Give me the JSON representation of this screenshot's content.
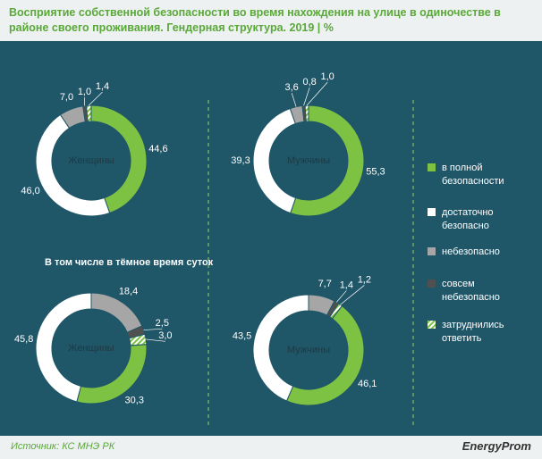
{
  "title": "Восприятие собственной безопасности во время нахождения на улице в одиночестве в районе своего проживания. Гендерная структура. 2019 | %",
  "section_label": "В том числе  в тёмное время суток",
  "source": "Источник: КС МНЭ РК",
  "logo": "EnergyProm",
  "chart_data": [
    {
      "type": "donut",
      "center_label": "Женщины",
      "categories": [
        "в полной безопасности",
        "достаточно безопасно",
        "небезопасно",
        "совсем небезопасно",
        "затруднились ответить"
      ],
      "values": [
        44.6,
        46.0,
        7.0,
        1.0,
        1.4
      ],
      "value_labels": [
        "44,6",
        "46,0",
        "7,0",
        "1,0",
        "1,4"
      ],
      "colors": [
        "#7dc242",
        "#ffffff",
        "#a6a6a6",
        "#505050",
        "#b5dc7e"
      ],
      "hatched": [
        false,
        false,
        false,
        false,
        true
      ]
    },
    {
      "type": "donut",
      "center_label": "Мужчины",
      "categories": [
        "в полной безопасности",
        "достаточно безопасно",
        "небезопасно",
        "совсем небезопасно",
        "затруднились ответить"
      ],
      "values": [
        55.3,
        39.3,
        3.6,
        0.8,
        1.0
      ],
      "value_labels": [
        "55,3",
        "39,3",
        "3,6",
        "0,8",
        "1,0"
      ],
      "colors": [
        "#7dc242",
        "#ffffff",
        "#a6a6a6",
        "#505050",
        "#b5dc7e"
      ],
      "hatched": [
        false,
        false,
        false,
        false,
        true
      ]
    },
    {
      "type": "donut",
      "center_label": "Женщины",
      "categories": [
        "небезопасно",
        "совсем небезопасно",
        "затруднились ответить",
        "в полной безопасности",
        "достаточно безопасно"
      ],
      "values": [
        18.4,
        2.5,
        3.0,
        30.3,
        45.8
      ],
      "value_labels": [
        "18,4",
        "2,5",
        "3,0",
        "30,3",
        "45,8"
      ],
      "colors": [
        "#a6a6a6",
        "#505050",
        "#b5dc7e",
        "#7dc242",
        "#ffffff"
      ],
      "hatched": [
        false,
        false,
        true,
        false,
        false
      ]
    },
    {
      "type": "donut",
      "center_label": "Мужчины",
      "categories": [
        "небезопасно",
        "совсем небезопасно",
        "затруднились ответить",
        "в полной безопасности",
        "достаточно безопасно"
      ],
      "values": [
        7.7,
        1.4,
        1.2,
        46.1,
        43.5
      ],
      "value_labels": [
        "7,7",
        "1,4",
        "1,2",
        "46,1",
        "43,5"
      ],
      "colors": [
        "#a6a6a6",
        "#505050",
        "#b5dc7e",
        "#7dc242",
        "#ffffff"
      ],
      "hatched": [
        false,
        false,
        true,
        false,
        false
      ]
    }
  ]
}
